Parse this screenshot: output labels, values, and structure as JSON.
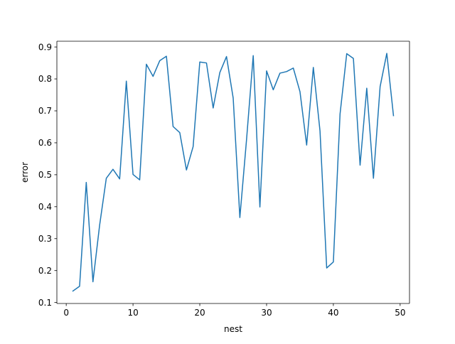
{
  "chart_data": {
    "type": "line",
    "title": "",
    "xlabel": "nest",
    "ylabel": "error",
    "xlim": [
      -1.4,
      51.4
    ],
    "ylim": [
      0.097,
      0.918
    ],
    "xticks": [
      0,
      10,
      20,
      30,
      40,
      50
    ],
    "yticks": [
      0.1,
      0.2,
      0.3,
      0.4,
      0.5,
      0.6,
      0.7,
      0.8,
      0.9
    ],
    "xtick_labels": [
      "0",
      "10",
      "20",
      "30",
      "40",
      "50"
    ],
    "ytick_labels": [
      "0.1",
      "0.2",
      "0.3",
      "0.4",
      "0.5",
      "0.6",
      "0.7",
      "0.8",
      "0.9"
    ],
    "grid": false,
    "legend": false,
    "series": [
      {
        "color": "#1f77b4",
        "x": [
          1,
          2,
          3,
          4,
          5,
          6,
          7,
          8,
          9,
          10,
          11,
          12,
          13,
          14,
          15,
          16,
          17,
          18,
          19,
          20,
          21,
          22,
          23,
          24,
          25,
          26,
          27,
          28,
          29,
          30,
          31,
          32,
          33,
          34,
          35,
          36,
          37,
          38,
          39,
          40,
          41,
          42,
          43,
          44,
          45,
          46,
          47,
          48,
          49
        ],
        "y": [
          0.136,
          0.151,
          0.476,
          0.165,
          0.342,
          0.489,
          0.517,
          0.487,
          0.793,
          0.501,
          0.484,
          0.846,
          0.808,
          0.857,
          0.871,
          0.651,
          0.632,
          0.515,
          0.588,
          0.853,
          0.85,
          0.709,
          0.82,
          0.87,
          0.74,
          0.366,
          0.61,
          0.873,
          0.399,
          0.825,
          0.766,
          0.818,
          0.823,
          0.834,
          0.76,
          0.593,
          0.836,
          0.637,
          0.208,
          0.227,
          0.69,
          0.879,
          0.864,
          0.53,
          0.771,
          0.489,
          0.776,
          0.88,
          0.685
        ]
      }
    ]
  }
}
